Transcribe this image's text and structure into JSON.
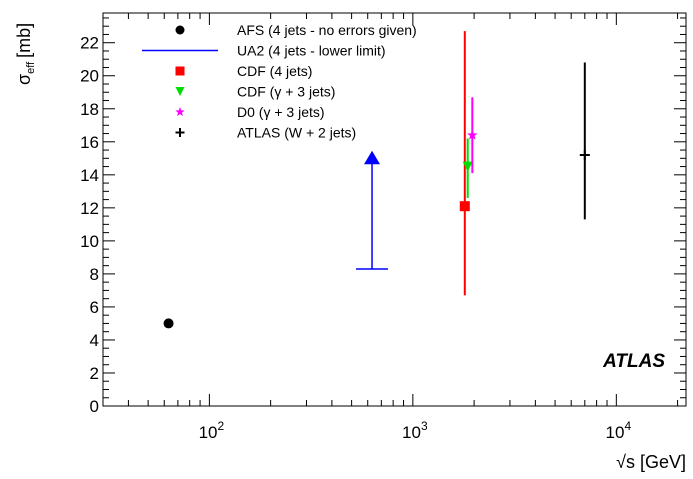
{
  "chart_data": {
    "type": "scatter",
    "x_scale": "log",
    "xlim": [
      30,
      22000
    ],
    "ylim": [
      0,
      23.8
    ],
    "grid": false,
    "legend_position": "top-left",
    "xlabel": "√s [GeV]",
    "ylabel_main": "σ",
    "ylabel_sub": "eff",
    "ylabel_unit": "[mb]",
    "badge": "ATLAS",
    "y_ticks": [
      0,
      2,
      4,
      6,
      8,
      10,
      12,
      14,
      16,
      18,
      20,
      22
    ],
    "y_tick_labels": [
      "0",
      "2",
      "4",
      "6",
      "8",
      "10",
      "12",
      "14",
      "16",
      "18",
      "20",
      "22"
    ],
    "x_ticks": [
      100,
      1000,
      10000
    ],
    "x_tick_bases": [
      "10",
      "10",
      "10"
    ],
    "x_tick_exps": [
      "2",
      "3",
      "4"
    ],
    "series": [
      {
        "name": "AFS (4 jets - no errors given)",
        "marker": "circle",
        "color": "#000000",
        "points": [
          {
            "x": 63,
            "y": 5.0
          }
        ]
      },
      {
        "name": "UA2 (4 jets - lower limit)",
        "marker": "lower-limit",
        "color": "#0000ff",
        "points": [
          {
            "x": 630,
            "y": 8.3,
            "arrow_to": 15.0
          }
        ]
      },
      {
        "name": "CDF (4 jets)",
        "marker": "square",
        "color": "#ff0000",
        "points": [
          {
            "x": 1800,
            "y": 12.1,
            "y_low": 6.7,
            "y_high": 22.7
          }
        ]
      },
      {
        "name": "CDF (γ + 3 jets)",
        "marker": "triangle-down",
        "color": "#00dd00",
        "points": [
          {
            "x": 1860,
            "y": 14.5,
            "y_low": 12.6,
            "y_high": 16.2
          }
        ]
      },
      {
        "name": "D0 (γ + 3 jets)",
        "marker": "star",
        "color": "#ff00ff",
        "points": [
          {
            "x": 1960,
            "y": 16.4,
            "y_low": 14.1,
            "y_high": 18.7
          }
        ]
      },
      {
        "name": "ATLAS (W + 2 jets)",
        "marker": "cross",
        "color": "#000000",
        "points": [
          {
            "x": 7000,
            "y": 15.2,
            "y_low": 11.3,
            "y_high": 20.8
          }
        ]
      }
    ]
  }
}
